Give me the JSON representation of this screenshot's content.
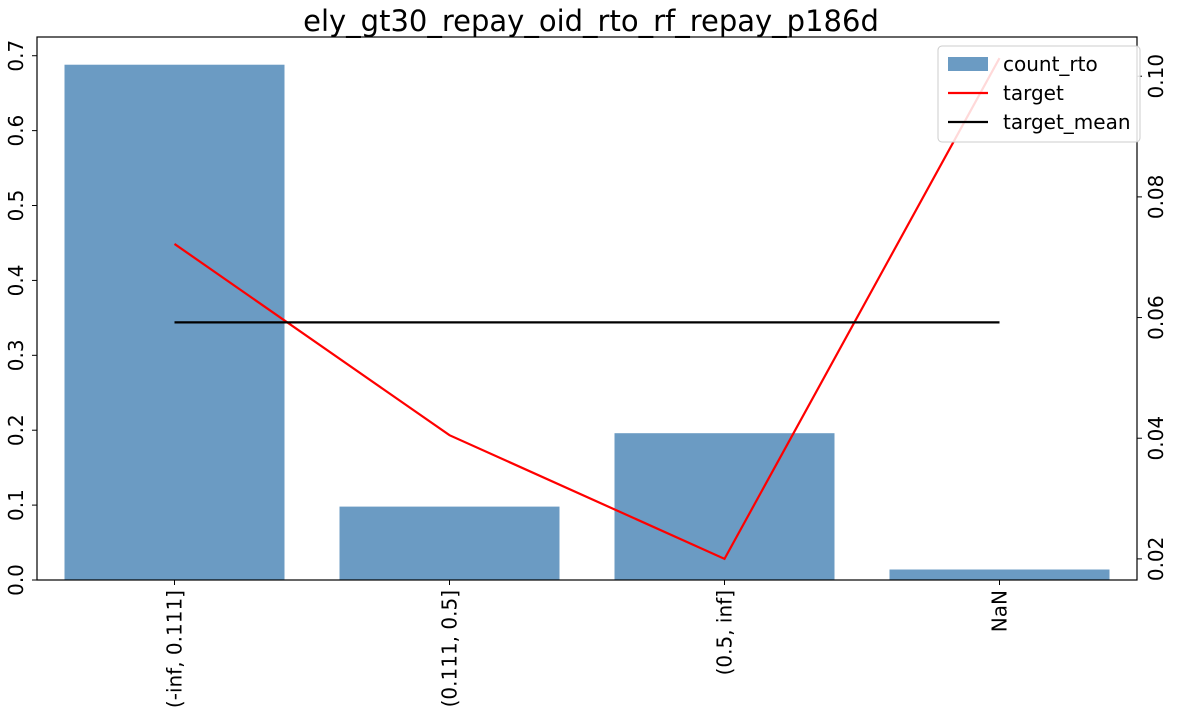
{
  "chart_data": {
    "type": "bar",
    "title": "ely_gt30_repay_oid_rto_rf_repay_p186d",
    "categories": [
      "(-inf, 0.111]",
      "(0.111, 0.5]",
      "(0.5, inf]",
      "NaN"
    ],
    "series": [
      {
        "name": "count_rto",
        "type": "bar",
        "axis": "left",
        "color": "#6b9bc3",
        "values": [
          0.688,
          0.098,
          0.196,
          0.014
        ]
      },
      {
        "name": "target",
        "type": "line",
        "axis": "right",
        "color": "#ff0000",
        "values": [
          0.0722,
          0.0405,
          0.02,
          0.103
        ]
      },
      {
        "name": "target_mean",
        "type": "line",
        "axis": "right",
        "color": "#000000",
        "values": [
          0.0592,
          0.0592,
          0.0592,
          0.0592
        ]
      }
    ],
    "y_left": {
      "ylim": [
        0,
        0.725
      ],
      "ticks": [
        "0.0",
        "0.1",
        "0.2",
        "0.3",
        "0.4",
        "0.5",
        "0.6",
        "0.7"
      ],
      "tick_values": [
        0,
        0.1,
        0.2,
        0.3,
        0.4,
        0.5,
        0.6,
        0.7
      ]
    },
    "y_right": {
      "ylim": [
        0.0165,
        0.1065
      ],
      "ticks": [
        "0.02",
        "0.04",
        "0.06",
        "0.08",
        "0.10"
      ],
      "tick_values": [
        0.02,
        0.04,
        0.06,
        0.08,
        0.1
      ]
    },
    "legend": {
      "placement": "top-right",
      "entries": [
        "count_rto",
        "target",
        "target_mean"
      ]
    },
    "grid": false,
    "xlabel": "",
    "ylabel": ""
  }
}
